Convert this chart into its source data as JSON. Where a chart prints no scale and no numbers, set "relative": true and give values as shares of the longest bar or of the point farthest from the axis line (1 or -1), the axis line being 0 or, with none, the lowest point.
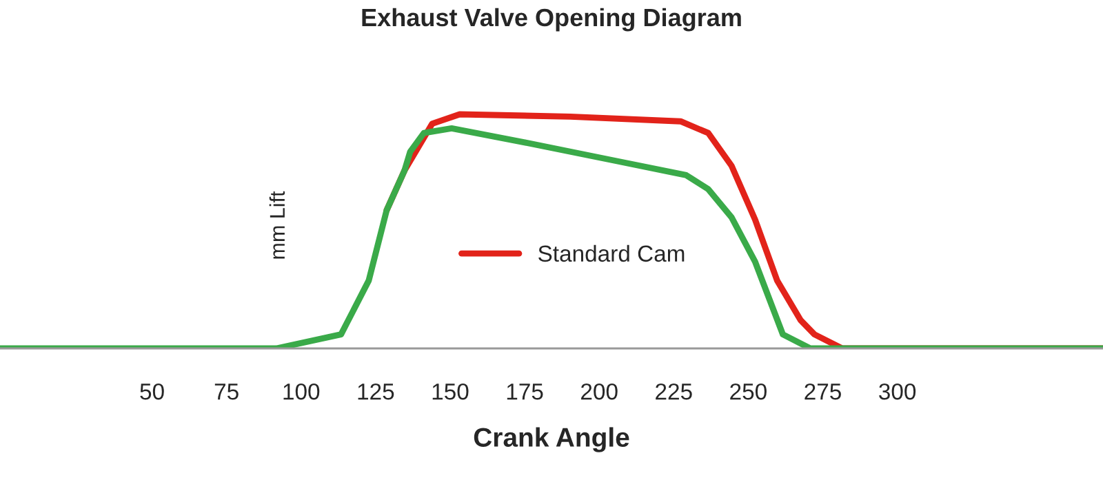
{
  "chart_data": {
    "type": "line",
    "title": "Exhaust Valve Opening Diagram",
    "xlabel": "Crank Angle",
    "ylabel": "mm Lift",
    "relative": true,
    "xlim": [
      -1,
      369
    ],
    "xticks": [
      50,
      75,
      100,
      125,
      150,
      175,
      200,
      225,
      250,
      275,
      300
    ],
    "series": [
      {
        "name": "Standard Cam",
        "color": "#e2231a",
        "x": [
          128.7,
          134.7,
          144.0,
          153.2,
          190.3,
          227.3,
          236.6,
          244.4,
          252.3,
          259.7,
          267.6,
          272.2,
          281.5,
          369
        ],
        "values": [
          0.59,
          0.76,
          0.96,
          1,
          0.99,
          0.97,
          0.92,
          0.78,
          0.55,
          0.29,
          0.12,
          0.06,
          0,
          0
        ]
      },
      {
        "color": "#3aaa49",
        "x": [
          -1,
          91.7,
          113.4,
          122.7,
          128.7,
          134.7,
          136.6,
          141.2,
          150.5,
          175,
          206,
          229.2,
          236.6,
          244.4,
          252.3,
          261.6,
          270.8,
          369
        ],
        "values": [
          0,
          0,
          0.06,
          0.29,
          0.59,
          0.76,
          0.84,
          0.92,
          0.94,
          0.88,
          0.8,
          0.74,
          0.68,
          0.56,
          0.37,
          0.06,
          0,
          0
        ]
      }
    ],
    "grid": false,
    "legend": "bottom",
    "line_style": "solid",
    "marker": "none"
  }
}
